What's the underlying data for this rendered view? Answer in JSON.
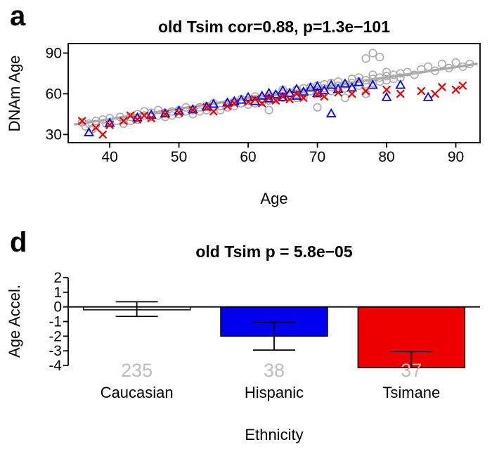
{
  "panel_a": {
    "label": "a",
    "title": "old Tsim cor=0.88, p=1.3e−101",
    "xlabel": "Age",
    "ylabel": "DNAm Age"
  },
  "panel_d": {
    "label": "d",
    "title": "old Tsim p = 5.8e−05",
    "xlabel": "Ethnicity",
    "ylabel": "Age Accel."
  },
  "colors": {
    "gray_marker": "#ABABAB",
    "blue_marker": "#0000EE",
    "red_marker": "#EE0000",
    "regression_line": "#ABABAB",
    "count_text": "#BEBEBE",
    "axis": "#000000"
  },
  "chart_data": [
    {
      "type": "scatter",
      "title": "old Tsim cor=0.88, p=1.3e−101",
      "xlabel": "Age",
      "ylabel": "DNAm Age",
      "xlim": [
        34,
        93.5
      ],
      "ylim": [
        24,
        97
      ],
      "xticks": [
        40,
        50,
        60,
        70,
        80,
        90
      ],
      "yticks": [
        30,
        60,
        90
      ],
      "grid": false,
      "regression_line": {
        "x1": 35,
        "y1": 37.5,
        "x2": 93,
        "y2": 82
      },
      "series": [
        {
          "name": "Caucasian",
          "marker": "circle",
          "color": "#ABABAB",
          "points": [
            [
              36,
              39
            ],
            [
              36.5,
              36
            ],
            [
              37,
              38
            ],
            [
              37.5,
              34
            ],
            [
              38,
              40
            ],
            [
              38,
              37
            ],
            [
              39,
              41
            ],
            [
              39.5,
              38
            ],
            [
              40,
              42
            ],
            [
              40,
              39
            ],
            [
              41,
              40
            ],
            [
              41.5,
              43
            ],
            [
              42,
              41
            ],
            [
              42,
              38
            ],
            [
              43,
              43
            ],
            [
              43,
              40
            ],
            [
              44,
              45
            ],
            [
              44,
              41
            ],
            [
              45,
              44
            ],
            [
              45,
              47
            ],
            [
              46,
              43
            ],
            [
              46,
              46
            ],
            [
              47,
              44
            ],
            [
              47,
              48
            ],
            [
              48,
              46
            ],
            [
              48,
              43
            ],
            [
              49,
              47
            ],
            [
              49,
              44
            ],
            [
              50,
              48
            ],
            [
              50,
              45
            ],
            [
              51,
              47
            ],
            [
              51,
              50
            ],
            [
              52,
              48
            ],
            [
              52,
              45
            ],
            [
              53,
              50
            ],
            [
              53,
              47
            ],
            [
              54,
              51
            ],
            [
              54,
              48
            ],
            [
              55,
              50
            ],
            [
              55,
              53
            ],
            [
              56,
              51
            ],
            [
              56,
              48
            ],
            [
              57,
              53
            ],
            [
              57,
              50
            ],
            [
              58,
              54
            ],
            [
              58,
              51
            ],
            [
              59,
              53
            ],
            [
              59,
              56
            ],
            [
              60,
              55
            ],
            [
              60,
              52
            ],
            [
              61,
              56
            ],
            [
              61,
              53
            ],
            [
              61,
              58
            ],
            [
              62,
              57
            ],
            [
              62,
              54
            ],
            [
              63,
              58
            ],
            [
              63,
              55
            ],
            [
              63,
              48
            ],
            [
              64,
              59
            ],
            [
              64,
              56
            ],
            [
              65,
              60
            ],
            [
              65,
              57
            ],
            [
              65,
              63
            ],
            [
              66,
              58
            ],
            [
              66,
              61
            ],
            [
              67,
              60
            ],
            [
              67,
              63
            ],
            [
              67,
              57
            ],
            [
              68,
              61
            ],
            [
              68,
              64
            ],
            [
              68,
              58
            ],
            [
              69,
              62
            ],
            [
              69,
              65
            ],
            [
              70,
              63
            ],
            [
              70,
              60
            ],
            [
              70,
              66
            ],
            [
              71,
              64
            ],
            [
              71,
              61
            ],
            [
              71,
              67
            ],
            [
              72,
              65
            ],
            [
              72,
              62
            ],
            [
              72,
              68
            ],
            [
              73,
              66
            ],
            [
              73,
              63
            ],
            [
              73,
              69
            ],
            [
              74,
              67
            ],
            [
              74,
              64
            ],
            [
              75,
              68
            ],
            [
              75,
              65
            ],
            [
              75,
              71
            ],
            [
              76,
              69
            ],
            [
              76,
              66
            ],
            [
              76,
              72
            ],
            [
              77,
              70
            ],
            [
              77,
              67
            ],
            [
              77,
              86
            ],
            [
              78,
              71
            ],
            [
              78,
              68
            ],
            [
              78,
              74
            ],
            [
              78,
              90
            ],
            [
              79,
              72
            ],
            [
              79,
              69
            ],
            [
              79,
              87
            ],
            [
              80,
              73
            ],
            [
              80,
              70
            ],
            [
              80,
              76
            ],
            [
              81,
              74
            ],
            [
              81,
              71
            ],
            [
              82,
              75
            ],
            [
              82,
              72
            ],
            [
              83,
              76
            ],
            [
              84,
              74
            ],
            [
              85,
              78
            ],
            [
              86,
              80
            ],
            [
              87,
              77
            ],
            [
              88,
              82
            ],
            [
              89,
              79
            ],
            [
              90,
              83
            ],
            [
              91,
              80
            ],
            [
              92,
              82
            ],
            [
              70,
              50
            ],
            [
              74,
              57
            ],
            [
              77,
              60
            ]
          ]
        },
        {
          "name": "Hispanic",
          "marker": "triangle",
          "color": "#0000EE",
          "points": [
            [
              37,
              31
            ],
            [
              40,
              38
            ],
            [
              44,
              42
            ],
            [
              46,
              44
            ],
            [
              48,
              45
            ],
            [
              50,
              47
            ],
            [
              52,
              48
            ],
            [
              54,
              50
            ],
            [
              55,
              52
            ],
            [
              57,
              53
            ],
            [
              58,
              54
            ],
            [
              59,
              55
            ],
            [
              60,
              57
            ],
            [
              61,
              54
            ],
            [
              62,
              58
            ],
            [
              63,
              56
            ],
            [
              63,
              60
            ],
            [
              64,
              59
            ],
            [
              65,
              57
            ],
            [
              65,
              62
            ],
            [
              66,
              60
            ],
            [
              67,
              58
            ],
            [
              67,
              63
            ],
            [
              68,
              61
            ],
            [
              69,
              64
            ],
            [
              70,
              60
            ],
            [
              70,
              65
            ],
            [
              71,
              62
            ],
            [
              72,
              66
            ],
            [
              72,
              45
            ],
            [
              73,
              63
            ],
            [
              74,
              67
            ],
            [
              75,
              64
            ],
            [
              76,
              68
            ],
            [
              78,
              66
            ],
            [
              80,
              57
            ],
            [
              82,
              66
            ],
            [
              86,
              57
            ]
          ]
        },
        {
          "name": "Tsimane",
          "marker": "x",
          "color": "#EE0000",
          "points": [
            [
              36,
              40
            ],
            [
              38,
              35
            ],
            [
              39,
              30
            ],
            [
              40,
              37
            ],
            [
              42,
              40
            ],
            [
              43,
              44
            ],
            [
              44,
              41
            ],
            [
              45,
              44
            ],
            [
              46,
              42
            ],
            [
              48,
              45
            ],
            [
              50,
              46
            ],
            [
              52,
              48
            ],
            [
              54,
              50
            ],
            [
              55,
              47
            ],
            [
              57,
              51
            ],
            [
              58,
              53
            ],
            [
              60,
              54
            ],
            [
              61,
              56
            ],
            [
              62,
              53
            ],
            [
              63,
              57
            ],
            [
              64,
              55
            ],
            [
              65,
              58
            ],
            [
              66,
              56
            ],
            [
              67,
              60
            ],
            [
              68,
              57
            ],
            [
              70,
              60
            ],
            [
              71,
              58
            ],
            [
              73,
              61
            ],
            [
              75,
              60
            ],
            [
              77,
              62
            ],
            [
              80,
              63
            ],
            [
              82,
              60
            ],
            [
              85,
              62
            ],
            [
              87,
              60
            ],
            [
              88,
              65
            ],
            [
              90,
              63
            ],
            [
              91,
              66
            ]
          ]
        }
      ]
    },
    {
      "type": "bar",
      "title": "old Tsim p = 5.8e−05",
      "xlabel": "Ethnicity",
      "ylabel": "Age Accel.",
      "ylim": [
        -4.7,
        2.6
      ],
      "yticks": [
        2,
        1,
        0,
        -1,
        -2,
        -3,
        -4
      ],
      "categories": [
        "Caucasian",
        "Hispanic",
        "Tsimane"
      ],
      "values": [
        -0.2,
        -2.0,
        -4.15
      ],
      "error_high": [
        0.35,
        -1.05,
        -3.05
      ],
      "error_low": [
        -0.65,
        -2.95,
        null
      ],
      "bar_colors": [
        "#FFFFFF",
        "#0000EE",
        "#EE0000"
      ],
      "counts": [
        "235",
        "38",
        "37"
      ],
      "count_color": "#BEBEBE",
      "legend": "none"
    }
  ]
}
